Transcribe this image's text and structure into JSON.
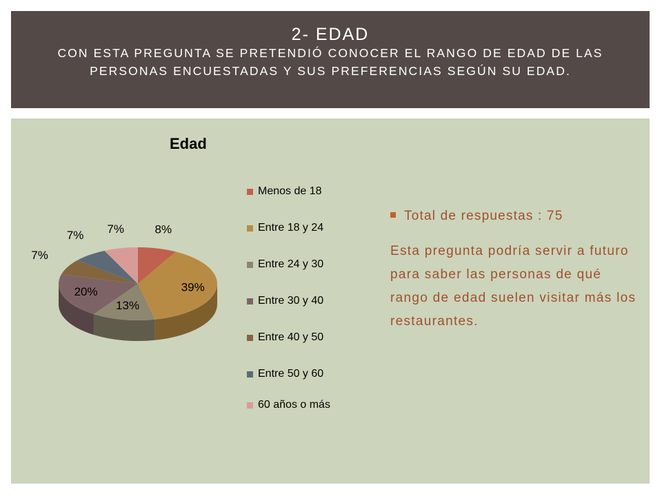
{
  "header": {
    "title": "2- EDAD",
    "subtitle": "CON ESTA PREGUNTA SE PRETENDIÓ CONOCER EL RANGO DE EDAD DE LAS PERSONAS ENCUESTADAS Y SUS PREFERENCIAS SEGÚN SU EDAD."
  },
  "chart_data": {
    "type": "pie",
    "title": "Edad",
    "legend_position": "right",
    "slices": [
      {
        "label": "Menos de 18",
        "value": 8,
        "display": "8%",
        "color": "#c0614f"
      },
      {
        "label": "Entre 18 y 24",
        "value": 39,
        "display": "39%",
        "color": "#b88b44"
      },
      {
        "label": "Entre 24 y 30",
        "value": 13,
        "display": "13%",
        "color": "#8d8770"
      },
      {
        "label": "Entre 30 y 40",
        "value": 20,
        "display": "20%",
        "color": "#7e6366"
      },
      {
        "label": "Entre 40 y 50",
        "value": 7,
        "display": "7%",
        "color": "#83653f"
      },
      {
        "label": "Entre 50 y 60",
        "value": 7,
        "display": "7%",
        "color": "#5c6a78"
      },
      {
        "label": "60 años o más",
        "value": 7,
        "display": "7%",
        "color": "#d99b98"
      }
    ]
  },
  "side": {
    "bullet": "Total de respuestas : 75",
    "paragraph": "Esta pregunta podría servir a futuro para saber las personas de qué rango de edad suelen visitar más los restaurantes."
  }
}
